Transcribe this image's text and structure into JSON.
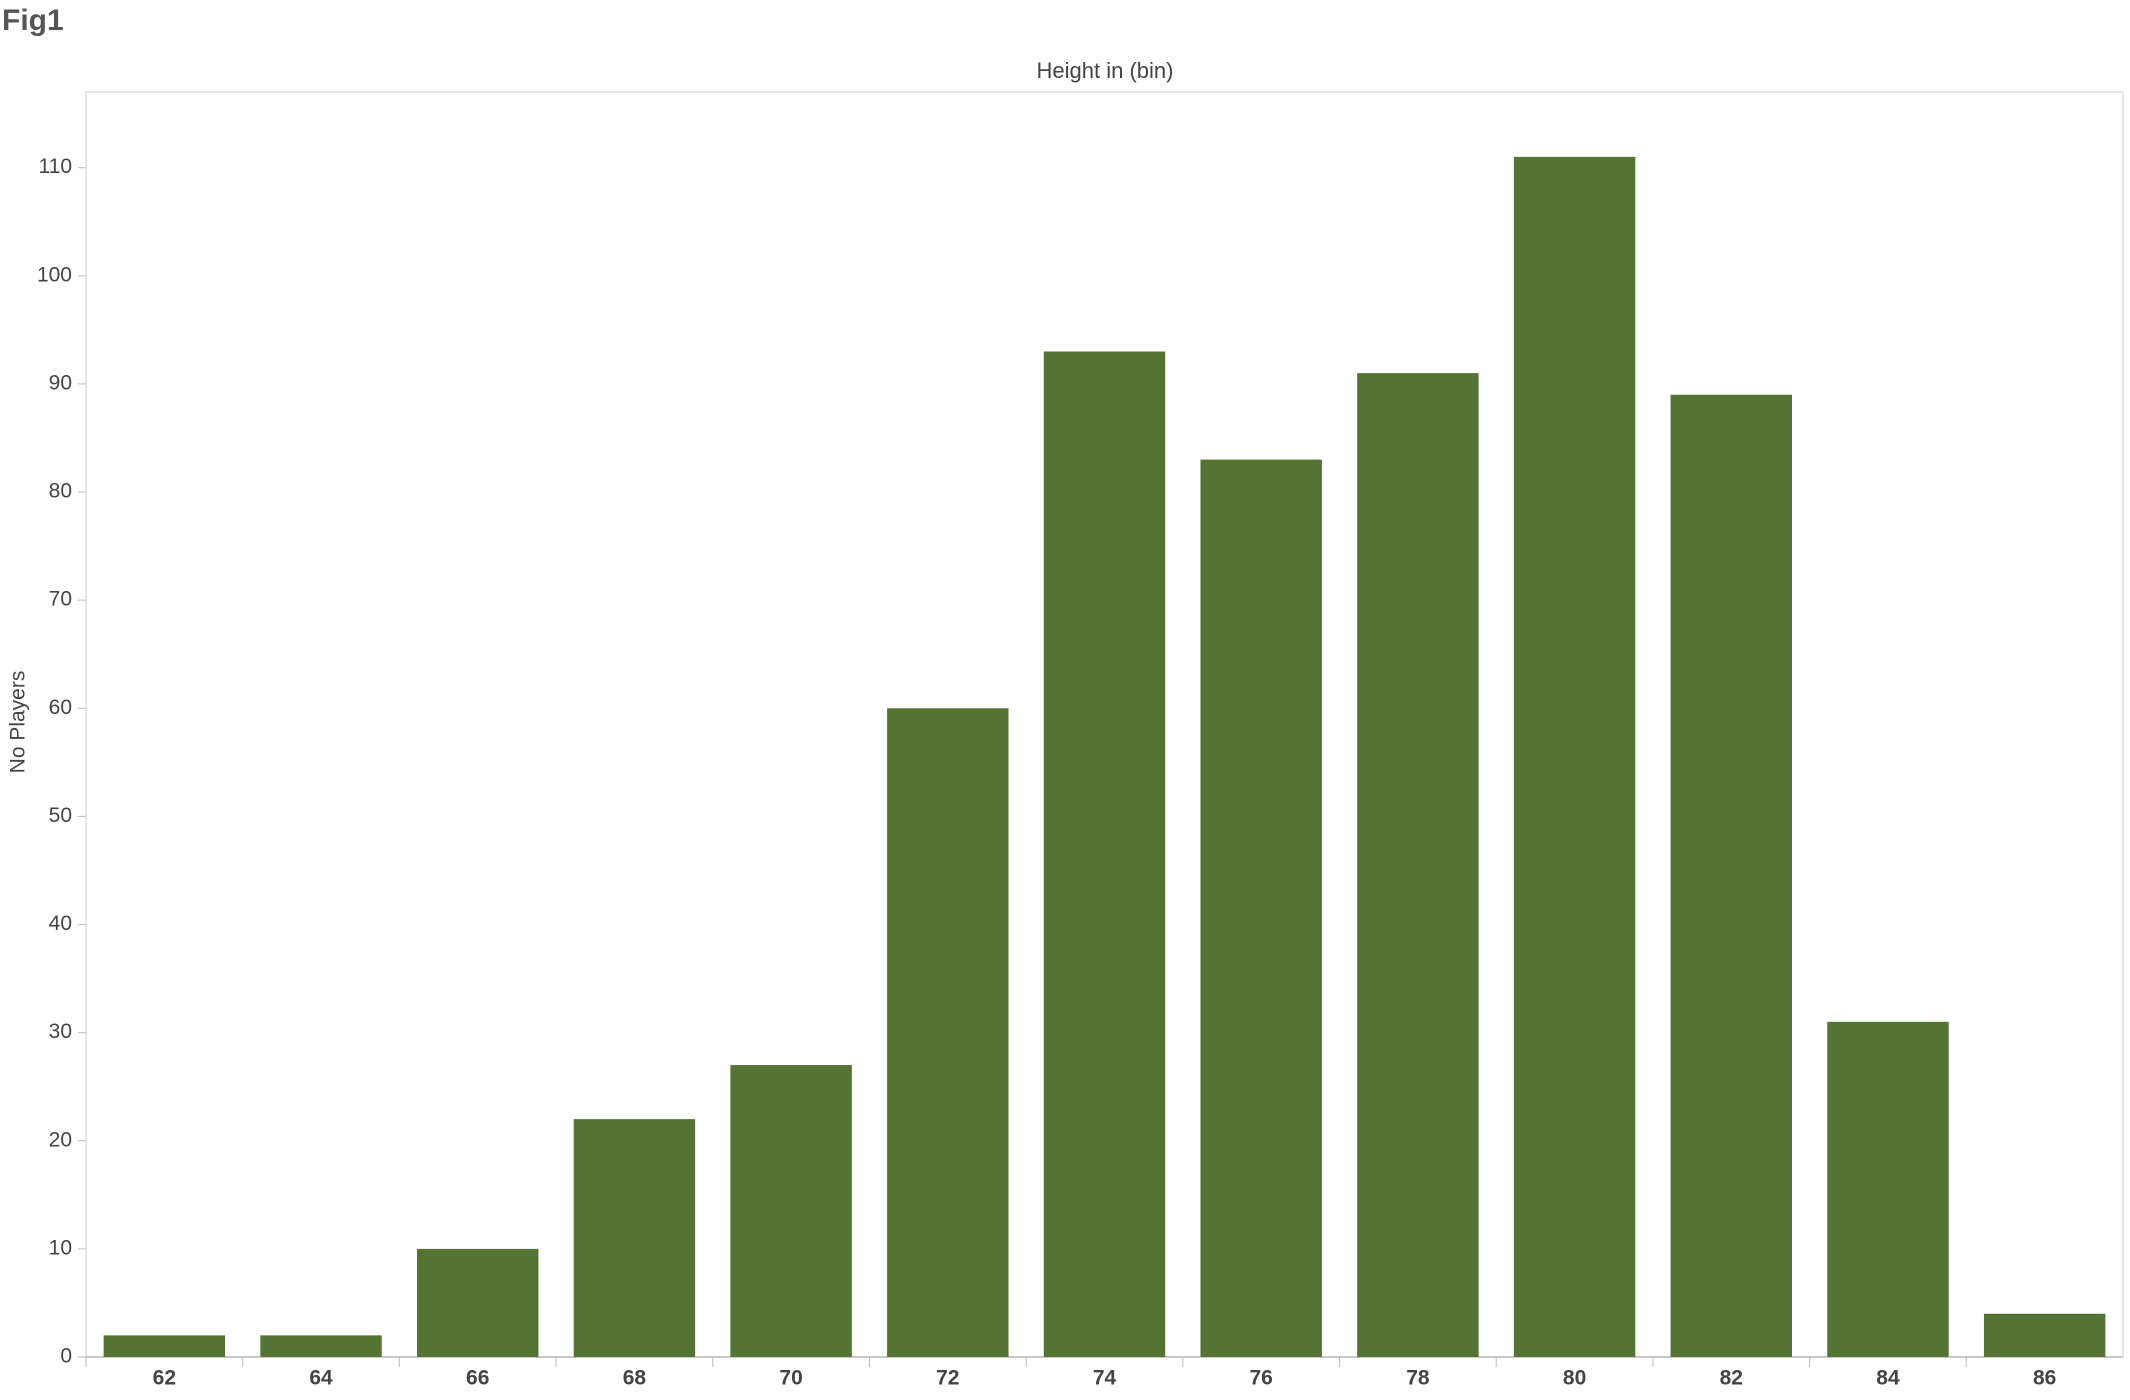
{
  "title": "Fig1",
  "chart_data": {
    "type": "bar",
    "title": "Height in (bin)",
    "y_label": "No Players",
    "categories": [
      "62",
      "64",
      "66",
      "68",
      "70",
      "72",
      "74",
      "76",
      "78",
      "80",
      "82",
      "84",
      "86"
    ],
    "values": [
      2,
      2,
      10,
      22,
      27,
      60,
      93,
      83,
      91,
      111,
      89,
      31,
      4
    ],
    "color": "#557332",
    "ylim": [
      0,
      117
    ],
    "yticks": [
      0,
      10,
      20,
      30,
      40,
      50,
      60,
      70,
      80,
      90,
      100,
      110
    ],
    "grid": false
  }
}
